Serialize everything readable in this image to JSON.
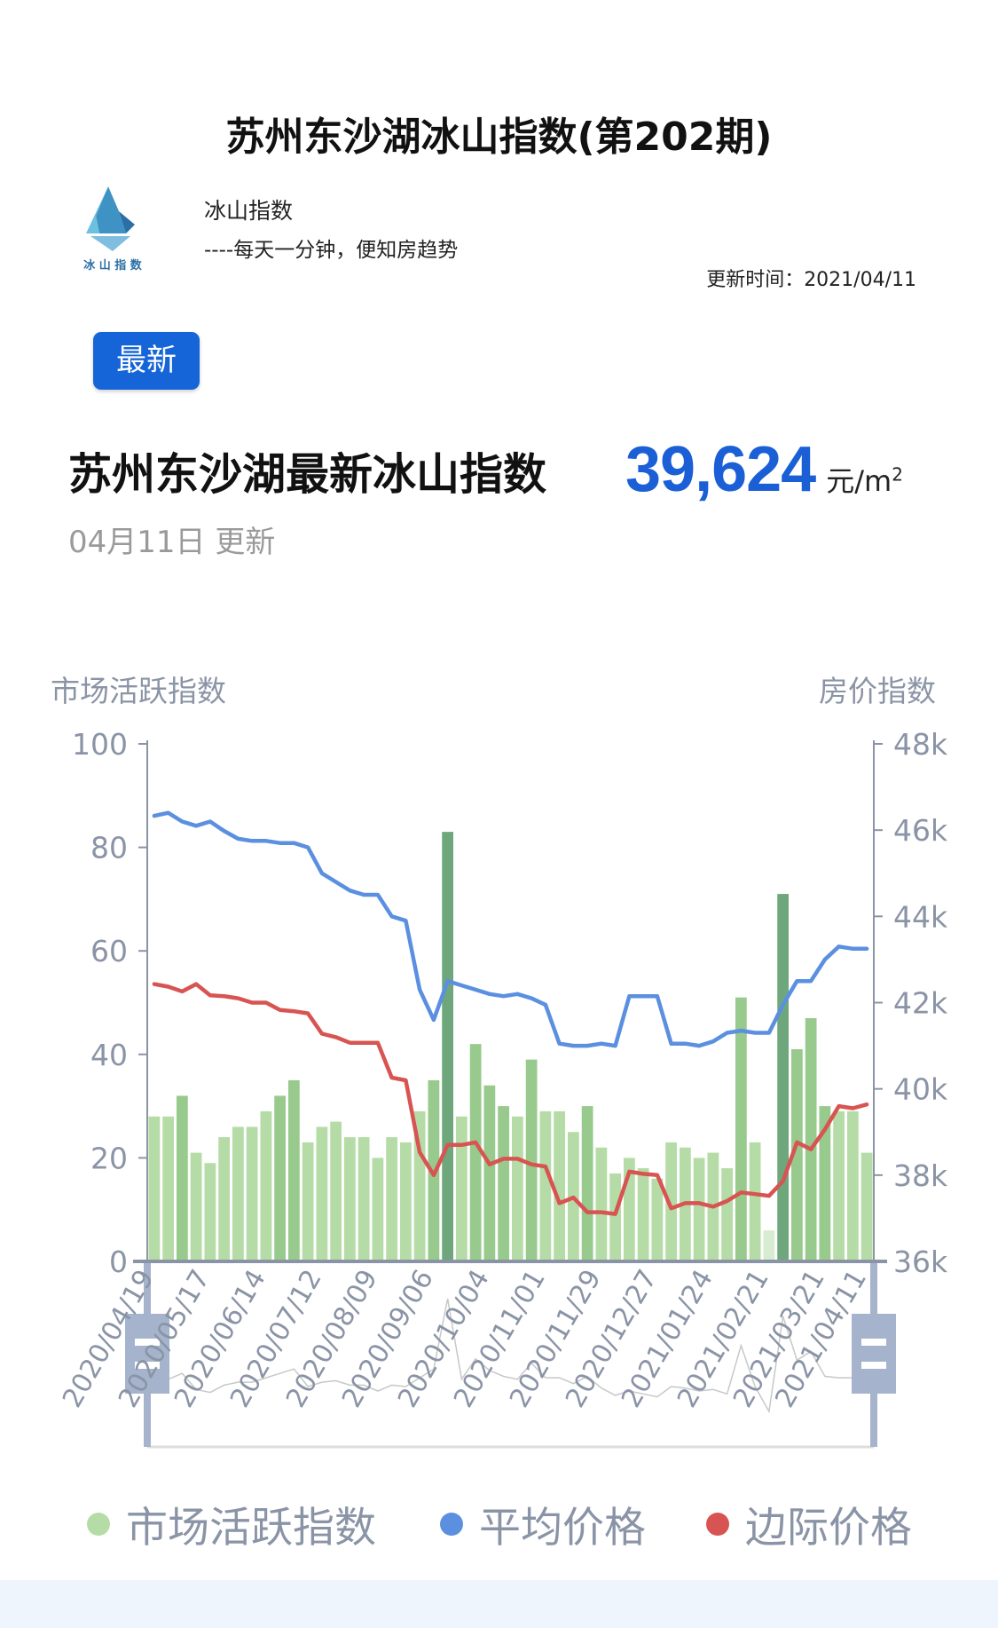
{
  "header": {
    "title": "苏州东沙湖冰山指数(第202期)",
    "brand_name": "冰山指数",
    "logo_text": "冰 山 指 数",
    "slogan": "----每天一分钟，便知房趋势",
    "update_time": "更新时间：2021/04/11"
  },
  "badge": {
    "label": "最新",
    "color": "#1565d8"
  },
  "summary": {
    "heading": "苏州东沙湖最新冰山指数",
    "price": "39,624",
    "unit": "元/m",
    "unit_sup": "2",
    "date": "04月11日  更新",
    "price_color": "#1a5fd6"
  },
  "chart_data": {
    "type": "bar+line",
    "y_left_title": "市场活跃指数",
    "y_right_title": "房价指数",
    "y_left_range": [
      0,
      100
    ],
    "y_left_ticks": [
      "0",
      "20",
      "40",
      "60",
      "80",
      "100"
    ],
    "y_right_range": [
      36000,
      48000
    ],
    "y_right_ticks": [
      "36k",
      "38k",
      "40k",
      "42k",
      "44k",
      "46k",
      "48k"
    ],
    "x_tick_labels": [
      "2020/04/19",
      "2020/05/17",
      "2020/06/14",
      "2020/07/12",
      "2020/08/09",
      "2020/09/06",
      "2020/10/04",
      "2020/11/01",
      "2020/11/29",
      "2020/12/27",
      "2021/01/24",
      "2021/02/21",
      "2021/03/21",
      "2021/04/11"
    ],
    "x_start": "2020/04/19",
    "x_end": "2021/04/11",
    "x_interval": "weekly",
    "legend_position": "bottom",
    "has_datazoom_slider": true,
    "series": [
      {
        "name": "市场活跃指数",
        "axis": "left",
        "kind": "bar",
        "color": "#b5dca6",
        "values": [
          28,
          28,
          32,
          21,
          19,
          24,
          26,
          26,
          29,
          32,
          35,
          23,
          26,
          27,
          24,
          24,
          20,
          24,
          23,
          29,
          35,
          83,
          28,
          42,
          34,
          30,
          28,
          39,
          29,
          29,
          25,
          30,
          22,
          17,
          20,
          18,
          16,
          23,
          22,
          20,
          21,
          18,
          51,
          23,
          6,
          71,
          41,
          47,
          30,
          29,
          29,
          21
        ]
      },
      {
        "name": "平均价格",
        "axis": "right",
        "kind": "line",
        "color": "#5b8fe0",
        "values": [
          46330,
          46400,
          46200,
          46100,
          46200,
          45980,
          45800,
          45750,
          45750,
          45700,
          45700,
          45600,
          45000,
          44800,
          44600,
          44500,
          44500,
          44000,
          43900,
          42300,
          41600,
          42500,
          42400,
          42300,
          42200,
          42150,
          42200,
          42100,
          41950,
          41050,
          41000,
          41000,
          41050,
          41000,
          42150,
          42150,
          42150,
          41050,
          41050,
          41000,
          41100,
          41300,
          41350,
          41300,
          41300,
          41950,
          42500,
          42500,
          43000,
          43300,
          43250,
          43250
        ]
      },
      {
        "name": "边际价格",
        "axis": "right",
        "kind": "line",
        "color": "#d85452",
        "values": [
          42430,
          42370,
          42260,
          42430,
          42170,
          42150,
          42100,
          42000,
          42000,
          41830,
          41800,
          41750,
          41280,
          41200,
          41070,
          41070,
          41070,
          40260,
          40200,
          38530,
          38000,
          38700,
          38700,
          38760,
          38250,
          38380,
          38380,
          38250,
          38200,
          37350,
          37480,
          37140,
          37140,
          37100,
          38080,
          38030,
          38000,
          37230,
          37350,
          37350,
          37270,
          37400,
          37600,
          37560,
          37520,
          37860,
          38760,
          38600,
          39060,
          39600,
          39550,
          39640
        ]
      }
    ]
  },
  "legend": [
    {
      "label": "市场活跃指数",
      "color": "#b5dca6"
    },
    {
      "label": "平均价格",
      "color": "#5b8fe0"
    },
    {
      "label": "边际价格",
      "color": "#d85452"
    }
  ]
}
